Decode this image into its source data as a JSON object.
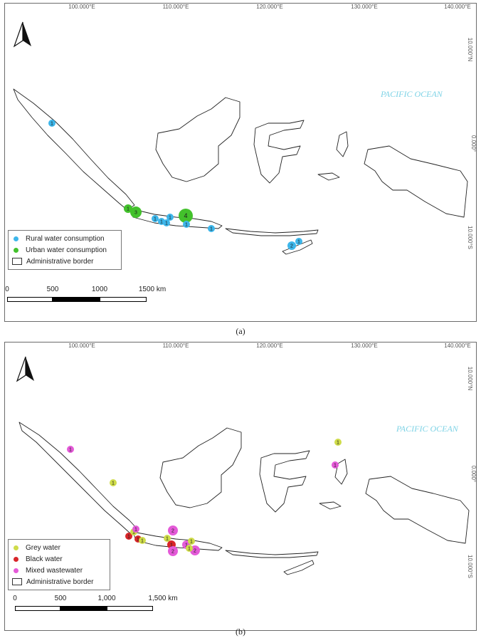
{
  "panel_a": {
    "lon_labels": [
      "100.000°E",
      "110.000°E",
      "120.000°E",
      "130.000°E",
      "140.000°E"
    ],
    "lat_labels": [
      "10.000°N",
      "0.000°",
      "10.000°S"
    ],
    "ocean_label": "PACIFIC OCEAN",
    "legend": {
      "rural": "Rural water consumption",
      "urban": "Urban water consumption",
      "border": "Administrative border"
    },
    "scale_labels": [
      "0",
      "500",
      "1000",
      "1500 km"
    ],
    "markers": [
      "1",
      "1",
      "3",
      "1",
      "1",
      "1",
      "1",
      "4",
      "1",
      "1",
      "2",
      "1"
    ],
    "caption": "(a)",
    "colors": {
      "rural": "#3db6ea",
      "urban": "#43c12c"
    }
  },
  "panel_b": {
    "lon_labels": [
      "100.000°E",
      "110.000°E",
      "120.000°E",
      "130.000°E",
      "140.000°E"
    ],
    "lat_labels": [
      "10.000°N",
      "0.000°",
      "10.000°S"
    ],
    "ocean_label": "PACIFIC OCEAN",
    "legend": {
      "grey": "Grey water",
      "black": "Black water",
      "mixed": "Mixed wastewater",
      "border": "Administrative border"
    },
    "scale_labels": [
      "0",
      "500",
      "1,000",
      "1,500 km"
    ],
    "markers": [
      "1",
      "1",
      "1",
      "1",
      "1",
      "1",
      "1",
      "1",
      "2",
      "1",
      "1",
      "2",
      "1",
      "1",
      "2",
      "1",
      "1"
    ],
    "caption": "(b)",
    "colors": {
      "grey": "#cfdc4a",
      "black": "#d8262a",
      "mixed": "#e45ad8"
    }
  }
}
